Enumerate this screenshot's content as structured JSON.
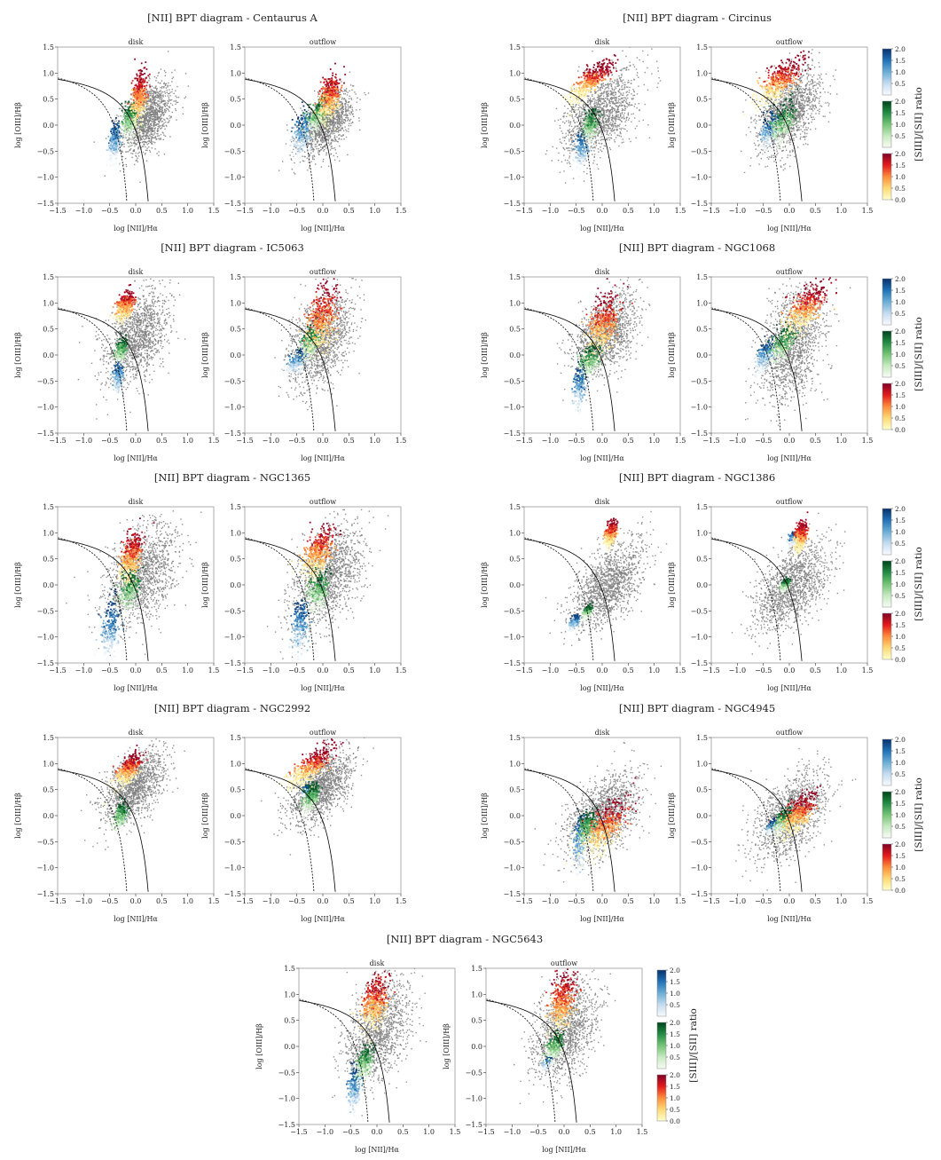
{
  "colors": {
    "background_points": "#7f7f7f",
    "curve": "#000000",
    "frame": "#9a9a9a"
  },
  "shared_axes": {
    "xlabel": "log [NII]/Hα",
    "ylabel": "log [OIII]/Hβ",
    "xlim": [
      -1.5,
      1.5
    ],
    "ylim": [
      -1.5,
      1.5
    ],
    "xticks": [
      "−1.5",
      "−1.0",
      "−0.5",
      "0.0",
      "0.5",
      "1.0",
      "1.5"
    ],
    "yticks": [
      "1.5",
      "1.0",
      "0.5",
      "0.0",
      "−0.5",
      "−1.0",
      "−1.5"
    ]
  },
  "colorbar": {
    "label": "[SIII]/[SII] ratio",
    "ticks_top": [
      "2.0",
      "1.5",
      "1.0",
      "0.5"
    ],
    "ticks_mid": [
      "2.0",
      "1.5",
      "1.0",
      "0.5"
    ],
    "ticks_bottom": [
      "2.0",
      "1.5",
      "1.0",
      "0.5",
      "0.0"
    ],
    "range": [
      0.0,
      2.0
    ],
    "gradients": {
      "blue": [
        "#f7fbff",
        "#c6dbef",
        "#6baed6",
        "#2171b5",
        "#08306b"
      ],
      "green": [
        "#f7fcf5",
        "#c7e9c0",
        "#74c476",
        "#238b45",
        "#00441b"
      ],
      "red": [
        "#ffffcc",
        "#fed976",
        "#fd8d3c",
        "#e31a1c",
        "#800026"
      ]
    }
  },
  "chart_data": [
    {
      "type": "scatter",
      "title": "[NII] BPT diagram - Centaurus A",
      "panels": [
        {
          "subtitle": "disk",
          "grey": {
            "cx": 0.2,
            "cy": 0.15,
            "sx": 0.25,
            "sy": 0.3
          },
          "blue": {
            "cx": -0.42,
            "cy": -0.3,
            "sx": 0.05,
            "sy": 0.18
          },
          "green": {
            "cx": -0.12,
            "cy": 0.1,
            "sx": 0.08,
            "sy": 0.16
          },
          "red": {
            "cx": 0.05,
            "cy": 0.55,
            "sx": 0.07,
            "sy": 0.22
          }
        },
        {
          "subtitle": "outflow",
          "grey": {
            "cx": 0.05,
            "cy": 0.05,
            "sx": 0.25,
            "sy": 0.25
          },
          "blue": {
            "cx": -0.4,
            "cy": -0.15,
            "sx": 0.08,
            "sy": 0.2
          },
          "green": {
            "cx": -0.12,
            "cy": 0.2,
            "sx": 0.1,
            "sy": 0.15
          },
          "red": {
            "cx": 0.12,
            "cy": 0.55,
            "sx": 0.1,
            "sy": 0.2
          }
        }
      ]
    },
    {
      "type": "scatter",
      "title": "[NII] BPT diagram - Circinus",
      "panels": [
        {
          "subtitle": "disk",
          "grey": {
            "cx": -0.05,
            "cy": 0.2,
            "sx": 0.35,
            "sy": 0.35
          },
          "blue": {
            "cx": -0.4,
            "cy": -0.45,
            "sx": 0.06,
            "sy": 0.15
          },
          "green": {
            "cx": -0.25,
            "cy": 0.0,
            "sx": 0.08,
            "sy": 0.15
          },
          "red": {
            "cx": -0.25,
            "cy": 0.85,
            "sx": 0.2,
            "sy": 0.12
          }
        },
        {
          "subtitle": "outflow",
          "grey": {
            "cx": 0.0,
            "cy": 0.3,
            "sx": 0.3,
            "sy": 0.35
          },
          "blue": {
            "cx": -0.4,
            "cy": -0.1,
            "sx": 0.08,
            "sy": 0.15
          },
          "green": {
            "cx": -0.15,
            "cy": 0.05,
            "sx": 0.12,
            "sy": 0.18
          },
          "red": {
            "cx": -0.2,
            "cy": 0.85,
            "sx": 0.22,
            "sy": 0.15
          }
        }
      ]
    },
    {
      "type": "scatter",
      "title": "[NII] BPT diagram - IC5063",
      "panels": [
        {
          "subtitle": "disk",
          "grey": {
            "cx": 0.0,
            "cy": 0.35,
            "sx": 0.3,
            "sy": 0.4
          },
          "blue": {
            "cx": -0.35,
            "cy": -0.4,
            "sx": 0.04,
            "sy": 0.15
          },
          "green": {
            "cx": -0.3,
            "cy": 0.1,
            "sx": 0.06,
            "sy": 0.1
          },
          "red": {
            "cx": -0.22,
            "cy": 0.95,
            "sx": 0.08,
            "sy": 0.12
          }
        },
        {
          "subtitle": "outflow",
          "grey": {
            "cx": -0.05,
            "cy": 0.3,
            "sx": 0.3,
            "sy": 0.4
          },
          "blue": {
            "cx": -0.5,
            "cy": -0.1,
            "sx": 0.1,
            "sy": 0.1
          },
          "green": {
            "cx": -0.25,
            "cy": 0.25,
            "sx": 0.1,
            "sy": 0.15
          },
          "red": {
            "cx": -0.05,
            "cy": 0.7,
            "sx": 0.15,
            "sy": 0.3
          }
        }
      ]
    },
    {
      "type": "scatter",
      "title": "[NII] BPT diagram - NGC1068",
      "panels": [
        {
          "subtitle": "disk",
          "grey": {
            "cx": 0.05,
            "cy": 0.4,
            "sx": 0.3,
            "sy": 0.35
          },
          "blue": {
            "cx": -0.45,
            "cy": -0.6,
            "sx": 0.06,
            "sy": 0.2
          },
          "green": {
            "cx": -0.25,
            "cy": -0.1,
            "sx": 0.1,
            "sy": 0.15
          },
          "red": {
            "cx": 0.0,
            "cy": 0.6,
            "sx": 0.15,
            "sy": 0.25
          }
        },
        {
          "subtitle": "outflow",
          "grey": {
            "cx": 0.05,
            "cy": 0.2,
            "sx": 0.3,
            "sy": 0.5
          },
          "blue": {
            "cx": -0.5,
            "cy": 0.0,
            "sx": 0.08,
            "sy": 0.12
          },
          "green": {
            "cx": -0.15,
            "cy": 0.2,
            "sx": 0.12,
            "sy": 0.15
          },
          "red": {
            "cx": 0.3,
            "cy": 0.9,
            "sx": 0.2,
            "sy": 0.18
          }
        }
      ]
    },
    {
      "type": "scatter",
      "title": "[NII] BPT diagram - NGC1365",
      "panels": [
        {
          "subtitle": "disk",
          "grey": {
            "cx": 0.1,
            "cy": 0.2,
            "sx": 0.35,
            "sy": 0.45
          },
          "blue": {
            "cx": -0.5,
            "cy": -0.85,
            "sx": 0.08,
            "sy": 0.25
          },
          "green": {
            "cx": -0.15,
            "cy": -0.1,
            "sx": 0.1,
            "sy": 0.2
          },
          "red": {
            "cx": -0.1,
            "cy": 0.55,
            "sx": 0.1,
            "sy": 0.2
          }
        },
        {
          "subtitle": "outflow",
          "grey": {
            "cx": 0.1,
            "cy": 0.2,
            "sx": 0.35,
            "sy": 0.45
          },
          "blue": {
            "cx": -0.45,
            "cy": -0.8,
            "sx": 0.08,
            "sy": 0.25
          },
          "green": {
            "cx": -0.1,
            "cy": -0.1,
            "sx": 0.1,
            "sy": 0.2
          },
          "red": {
            "cx": -0.1,
            "cy": 0.65,
            "sx": 0.15,
            "sy": 0.2
          }
        }
      ]
    },
    {
      "type": "scatter",
      "title": "[NII] BPT diagram - NGC1386",
      "panels": [
        {
          "subtitle": "disk",
          "grey": {
            "cx": 0.1,
            "cy": 0.0,
            "sx": 0.35,
            "sy": 0.35
          },
          "blue": {
            "cx": -0.55,
            "cy": -0.7,
            "sx": 0.04,
            "sy": 0.06
          },
          "green": {
            "cx": -0.3,
            "cy": -0.5,
            "sx": 0.04,
            "sy": 0.05
          },
          "red": {
            "cx": 0.15,
            "cy": 1.0,
            "sx": 0.05,
            "sy": 0.1
          }
        },
        {
          "subtitle": "outflow",
          "grey": {
            "cx": 0.05,
            "cy": 0.0,
            "sx": 0.35,
            "sy": 0.35
          },
          "blue": {
            "cx": 0.05,
            "cy": 0.9,
            "sx": 0.03,
            "sy": 0.05
          },
          "green": {
            "cx": -0.1,
            "cy": 0.0,
            "sx": 0.04,
            "sy": 0.05
          },
          "red": {
            "cx": 0.2,
            "cy": 0.95,
            "sx": 0.05,
            "sy": 0.12
          }
        }
      ]
    },
    {
      "type": "scatter",
      "title": "[NII] BPT diagram - NGC2992",
      "panels": [
        {
          "subtitle": "disk",
          "grey": {
            "cx": -0.05,
            "cy": 0.55,
            "sx": 0.3,
            "sy": 0.3
          },
          "blue": {
            "cx": -0.3,
            "cy": -0.05,
            "sx": 0.04,
            "sy": 0.06
          },
          "green": {
            "cx": -0.3,
            "cy": 0.0,
            "sx": 0.06,
            "sy": 0.12
          },
          "red": {
            "cx": -0.15,
            "cy": 0.9,
            "sx": 0.12,
            "sy": 0.12
          }
        },
        {
          "subtitle": "outflow",
          "grey": {
            "cx": -0.05,
            "cy": 0.55,
            "sx": 0.3,
            "sy": 0.3
          },
          "blue": {
            "cx": -0.35,
            "cy": 0.5,
            "sx": 0.03,
            "sy": 0.04
          },
          "green": {
            "cx": -0.25,
            "cy": 0.35,
            "sx": 0.08,
            "sy": 0.12
          },
          "red": {
            "cx": -0.25,
            "cy": 0.95,
            "sx": 0.22,
            "sy": 0.12
          }
        }
      ]
    },
    {
      "type": "scatter",
      "title": "[NII] BPT diagram - NGC4945",
      "panels": [
        {
          "subtitle": "disk",
          "grey": {
            "cx": 0.0,
            "cy": 0.0,
            "sx": 0.35,
            "sy": 0.35
          },
          "blue": {
            "cx": -0.45,
            "cy": -0.5,
            "sx": 0.06,
            "sy": 0.25
          },
          "green": {
            "cx": -0.3,
            "cy": -0.25,
            "sx": 0.08,
            "sy": 0.15
          },
          "red": {
            "cx": 0.05,
            "cy": -0.2,
            "sx": 0.2,
            "sy": 0.2
          }
        },
        {
          "subtitle": "outflow",
          "grey": {
            "cx": 0.0,
            "cy": 0.0,
            "sx": 0.35,
            "sy": 0.35
          },
          "blue": {
            "cx": -0.35,
            "cy": -0.2,
            "sx": 0.05,
            "sy": 0.05
          },
          "green": {
            "cx": -0.15,
            "cy": -0.1,
            "sx": 0.1,
            "sy": 0.1
          },
          "red": {
            "cx": 0.15,
            "cy": 0.05,
            "sx": 0.15,
            "sy": 0.15
          }
        }
      ]
    },
    {
      "type": "scatter",
      "title": "[NII] BPT diagram - NGC5643",
      "panels": [
        {
          "subtitle": "disk",
          "grey": {
            "cx": 0.0,
            "cy": 0.3,
            "sx": 0.3,
            "sy": 0.45
          },
          "blue": {
            "cx": -0.45,
            "cy": -0.8,
            "sx": 0.06,
            "sy": 0.2
          },
          "green": {
            "cx": -0.25,
            "cy": -0.3,
            "sx": 0.08,
            "sy": 0.15
          },
          "red": {
            "cx": -0.05,
            "cy": 0.85,
            "sx": 0.12,
            "sy": 0.25
          }
        },
        {
          "subtitle": "outflow",
          "grey": {
            "cx": 0.0,
            "cy": 0.3,
            "sx": 0.3,
            "sy": 0.45
          },
          "blue": {
            "cx": -0.35,
            "cy": -0.3,
            "sx": 0.04,
            "sy": 0.05
          },
          "green": {
            "cx": -0.2,
            "cy": 0.0,
            "sx": 0.08,
            "sy": 0.12
          },
          "red": {
            "cx": -0.05,
            "cy": 0.85,
            "sx": 0.12,
            "sy": 0.25
          }
        }
      ]
    }
  ]
}
